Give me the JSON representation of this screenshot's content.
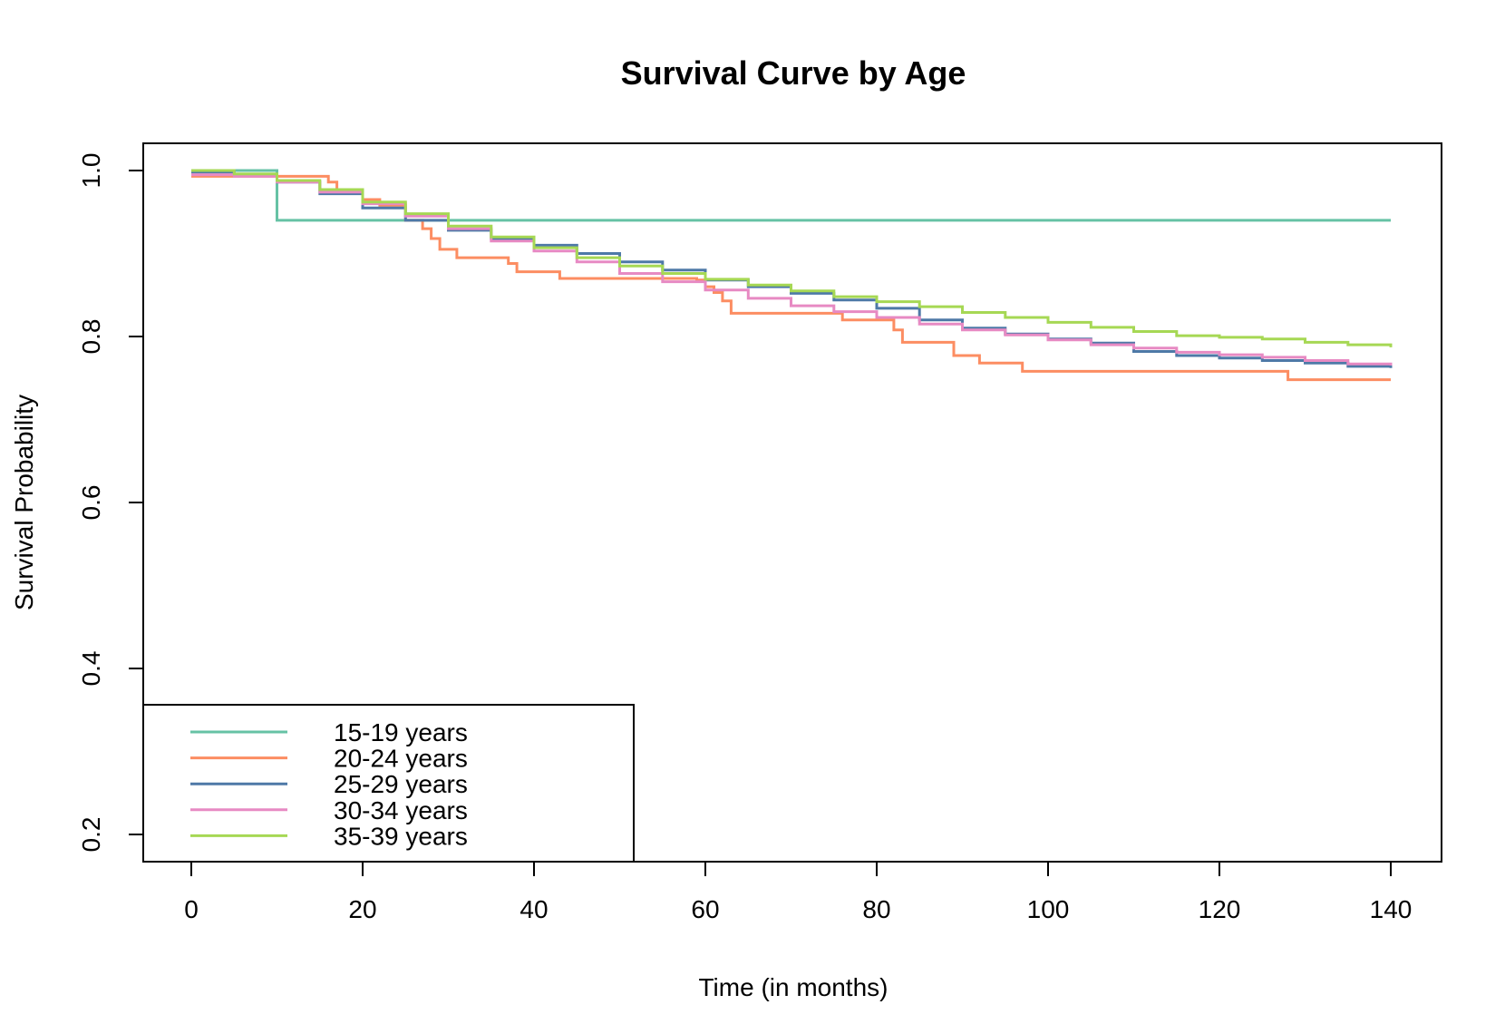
{
  "chart_data": {
    "type": "line",
    "step": true,
    "title": "Survival Curve by Age",
    "xlabel": "Time (in months)",
    "ylabel": "Survival Probability",
    "xlim": [
      0,
      140
    ],
    "ylim": [
      0.2,
      1.0
    ],
    "xticks": [
      "0",
      "20",
      "40",
      "60",
      "80",
      "100",
      "120",
      "140"
    ],
    "yticks": [
      "0.2",
      "0.4",
      "0.6",
      "0.8",
      "1.0"
    ],
    "grid": false,
    "legend_position": "bottom-left",
    "series": [
      {
        "name": "15-19 years",
        "color": "#66c2a5",
        "x": [
          0,
          10,
          140
        ],
        "y": [
          1.0,
          0.94,
          0.94
        ]
      },
      {
        "name": "20-24 years",
        "color": "#fc8d62",
        "x": [
          0,
          8,
          16,
          17,
          20,
          22,
          25,
          27,
          28,
          29,
          31,
          37,
          38,
          43,
          59,
          60,
          61,
          62,
          63,
          76,
          82,
          83,
          89,
          92,
          97,
          128,
          140
        ],
        "y": [
          0.993,
          0.993,
          0.986,
          0.977,
          0.965,
          0.958,
          0.94,
          0.93,
          0.918,
          0.905,
          0.895,
          0.888,
          0.878,
          0.87,
          0.868,
          0.86,
          0.853,
          0.843,
          0.828,
          0.82,
          0.808,
          0.793,
          0.777,
          0.768,
          0.758,
          0.748,
          0.748
        ]
      },
      {
        "name": "25-29 years",
        "color": "#4e79a7",
        "x": [
          0,
          5,
          10,
          15,
          20,
          25,
          30,
          35,
          40,
          45,
          50,
          55,
          60,
          65,
          70,
          75,
          80,
          85,
          90,
          95,
          100,
          105,
          110,
          115,
          120,
          125,
          130,
          135,
          140
        ],
        "y": [
          0.998,
          0.995,
          0.986,
          0.972,
          0.955,
          0.94,
          0.928,
          0.918,
          0.91,
          0.9,
          0.89,
          0.88,
          0.868,
          0.86,
          0.852,
          0.844,
          0.834,
          0.82,
          0.81,
          0.803,
          0.797,
          0.792,
          0.782,
          0.777,
          0.774,
          0.771,
          0.768,
          0.764,
          0.762
        ]
      },
      {
        "name": "30-34 years",
        "color": "#e78ac3",
        "x": [
          0,
          5,
          10,
          15,
          20,
          25,
          30,
          35,
          40,
          45,
          50,
          55,
          60,
          65,
          70,
          75,
          80,
          85,
          90,
          95,
          100,
          105,
          110,
          115,
          120,
          125,
          130,
          135,
          140
        ],
        "y": [
          0.995,
          0.993,
          0.986,
          0.974,
          0.96,
          0.945,
          0.93,
          0.915,
          0.903,
          0.89,
          0.876,
          0.866,
          0.856,
          0.846,
          0.837,
          0.83,
          0.823,
          0.815,
          0.808,
          0.802,
          0.796,
          0.79,
          0.786,
          0.781,
          0.778,
          0.775,
          0.771,
          0.767,
          0.765
        ]
      },
      {
        "name": "35-39 years",
        "color": "#a6d854",
        "x": [
          0,
          5,
          10,
          15,
          20,
          25,
          30,
          35,
          40,
          45,
          50,
          55,
          60,
          65,
          70,
          75,
          80,
          85,
          90,
          95,
          100,
          105,
          110,
          115,
          120,
          125,
          130,
          135,
          140
        ],
        "y": [
          1.0,
          0.996,
          0.988,
          0.977,
          0.962,
          0.948,
          0.933,
          0.92,
          0.907,
          0.895,
          0.885,
          0.876,
          0.869,
          0.862,
          0.855,
          0.848,
          0.842,
          0.836,
          0.829,
          0.823,
          0.817,
          0.811,
          0.806,
          0.801,
          0.799,
          0.797,
          0.793,
          0.79,
          0.787
        ]
      }
    ]
  }
}
